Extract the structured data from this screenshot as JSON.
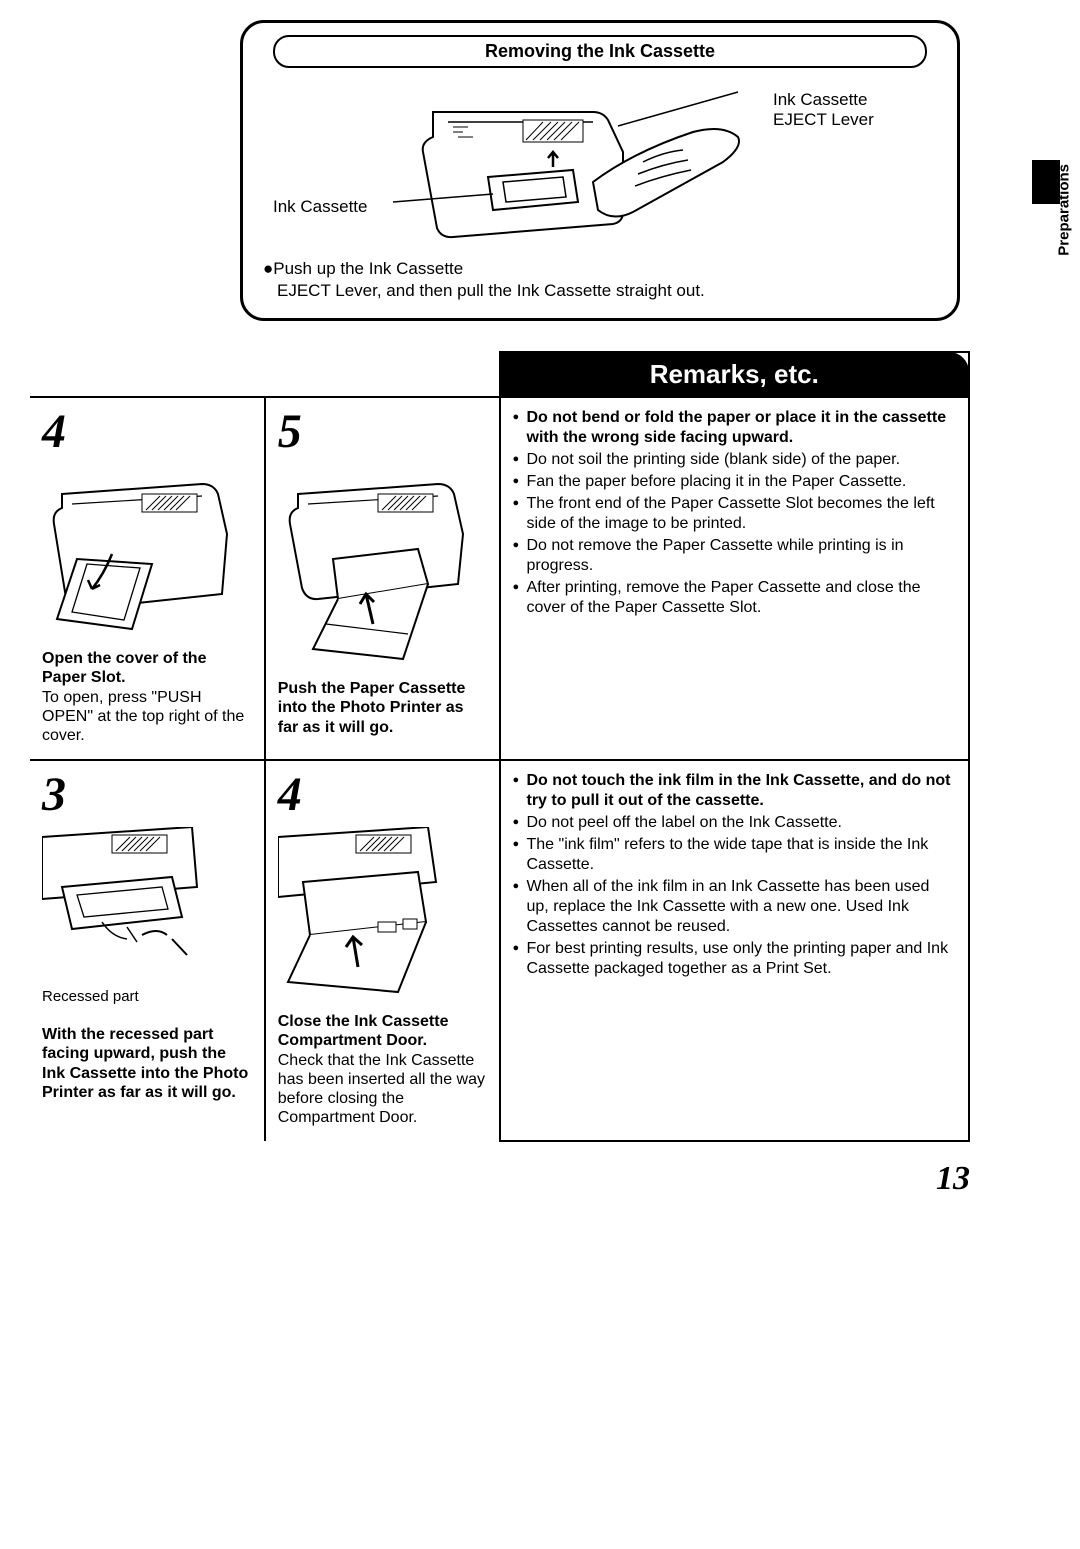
{
  "page": {
    "number": "13",
    "side_tab": "Preparations"
  },
  "top_box": {
    "title": "Removing the Ink Cassette",
    "label_right": "Ink Cassette\nEJECT Lever",
    "label_left": "Ink Cassette",
    "instruction_bullet": "●Push up the Ink Cassette",
    "instruction_line2": "EJECT Lever, and then pull the Ink Cassette straight out."
  },
  "row1": {
    "step_a": {
      "num": "4",
      "bold": "Open the cover of the Paper Slot.",
      "plain": "To open, press \"PUSH OPEN\" at the top right of the cover."
    },
    "step_b": {
      "num": "5",
      "bold": "Push the Paper Cassette into the Photo Printer as far as it will go."
    },
    "remarks": [
      {
        "text": "Do not bend or fold the paper or place it in the cassette with the wrong side facing upward.",
        "bold": true
      },
      {
        "text": "Do not soil the printing side (blank side) of the paper."
      },
      {
        "text": "Fan the paper before placing it in the Paper Cassette."
      },
      {
        "text": "The front end of the Paper Cassette Slot becomes the left side of the image to be printed."
      },
      {
        "text": "Do not remove the Paper Cassette while printing is in progress."
      },
      {
        "text": "After printing, remove the Paper Cassette and close the cover of the Paper Cassette Slot."
      }
    ]
  },
  "row2": {
    "step_a": {
      "num": "3",
      "recessed_label": "Recessed part",
      "bold": "With the recessed part facing upward, push the Ink Cassette into the Photo Printer as far as it will go."
    },
    "step_b": {
      "num": "4",
      "bold": "Close the Ink Cassette Compartment Door.",
      "plain": "Check that the Ink Cassette has been inserted all the way before closing the Compartment Door."
    },
    "remarks": [
      {
        "text": "Do not touch the ink film in the Ink Cassette, and do not try to pull it out of the cassette.",
        "bold": true
      },
      {
        "text": "Do not peel off the label on the Ink Cassette."
      },
      {
        "text": "The \"ink film\" refers to the wide tape that is inside the Ink Cassette."
      },
      {
        "text": "When all of the ink film in an Ink Cassette has been used up, replace the Ink Cassette with a new one. Used Ink Cassettes cannot be reused."
      },
      {
        "text": "For best printing results, use only the printing paper and Ink Cassette packaged together as a Print Set."
      }
    ]
  },
  "colors": {
    "black": "#000000",
    "white": "#ffffff"
  }
}
